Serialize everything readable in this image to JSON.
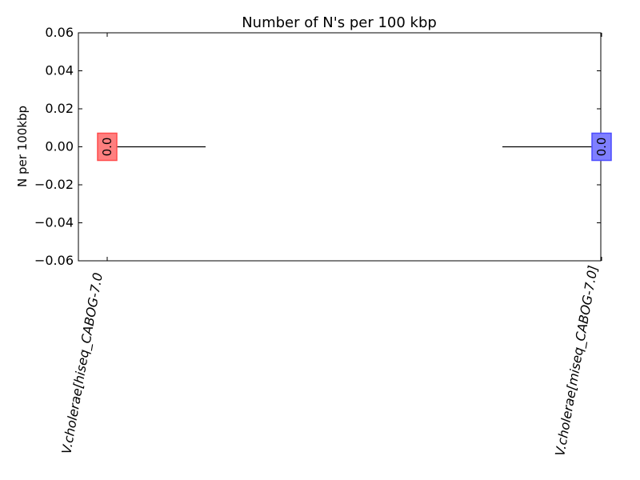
{
  "chart_data": {
    "type": "bar",
    "title": "Number of N's per 100 kbp",
    "xlabel": "",
    "ylabel": "N per 100kbp",
    "ylim": [
      -0.06,
      0.06
    ],
    "yticks": [
      "0.06",
      "0.04",
      "0.02",
      "0.00",
      "−0.02",
      "−0.04",
      "−0.06"
    ],
    "ytick_values": [
      0.06,
      0.04,
      0.02,
      0.0,
      -0.02,
      -0.04,
      -0.06
    ],
    "categories": [
      "V.cholerae[hiseq_CABOG-7.0",
      "V.cholerae[miseq_CABOG-7.0]"
    ],
    "values": [
      0.0,
      0.0
    ],
    "value_labels": [
      "0.0",
      "0.0"
    ],
    "bar_colors": [
      "#ff7f7f",
      "#7f7fff"
    ],
    "bar_edge_colors": [
      "#ff4c4c",
      "#4c4cff"
    ],
    "mean_line_color": "#000000",
    "grid": false,
    "legend": "none"
  }
}
